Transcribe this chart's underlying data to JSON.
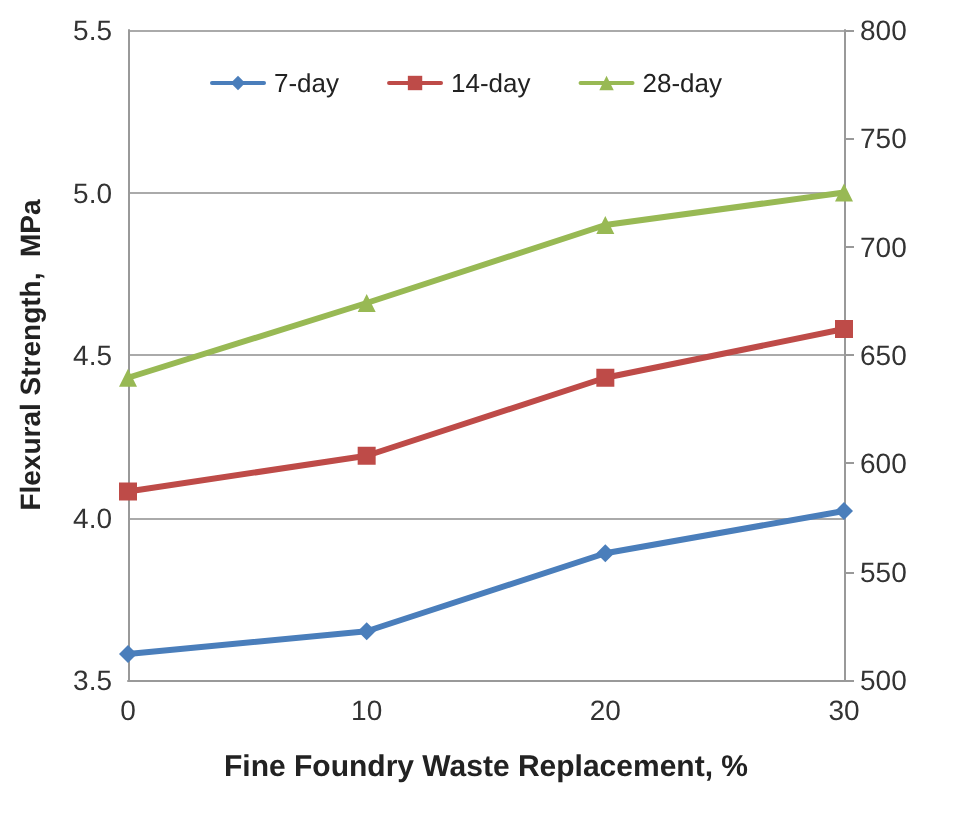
{
  "chart_data": {
    "type": "line",
    "xlabel": "Fine Foundry Waste Replacement, %",
    "ylabel": "Flexural Strength,  MPa",
    "categories": [
      "0",
      "10",
      "20",
      "30"
    ],
    "ylim": [
      3.5,
      5.5
    ],
    "yticks": [
      3.5,
      {
        "value": 4,
        "label": "4.0"
      },
      4.5,
      {
        "value": 5,
        "label": "5.0"
      },
      5.5
    ],
    "y2lim": [
      500,
      800
    ],
    "y2ticks": [
      500,
      550,
      600,
      650,
      700,
      750,
      800
    ],
    "grid": "y",
    "legend": "top",
    "line_style": "solid",
    "series": [
      {
        "name": "7-day",
        "color": "#4a7ebb",
        "marker": "diamond",
        "values": [
          3.58,
          3.65,
          3.89,
          4.02
        ]
      },
      {
        "name": "14-day",
        "color": "#be4b48",
        "marker": "square",
        "values": [
          4.08,
          4.19,
          4.43,
          4.58
        ]
      },
      {
        "name": "28-day",
        "color": "#98b954",
        "marker": "triangle",
        "values": [
          4.43,
          4.66,
          4.9,
          5.0
        ]
      }
    ]
  }
}
